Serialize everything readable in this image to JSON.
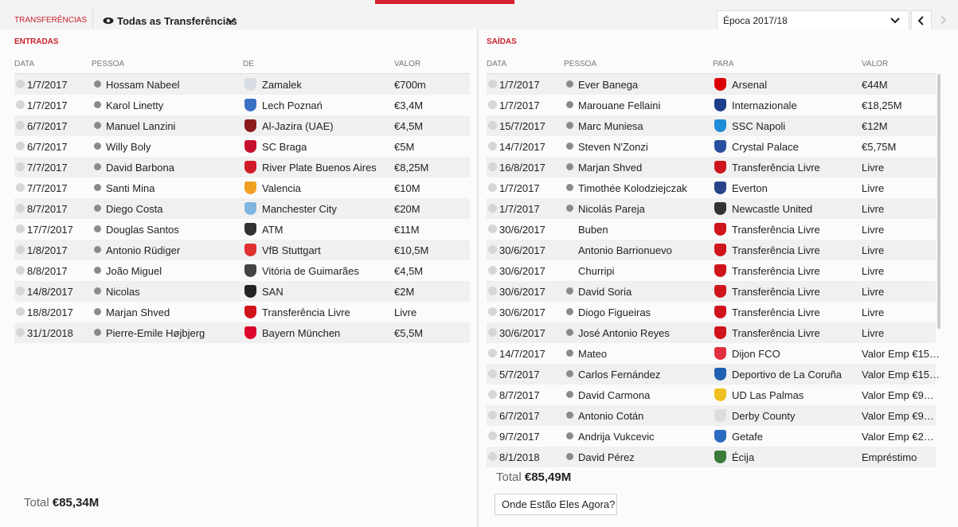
{
  "header": {
    "tab": "TRANSFERÊNCIAS",
    "filter": "Todas as Transferências",
    "season": "Época 2017/18"
  },
  "incoming": {
    "title": "ENTRADAS",
    "columns": [
      "DATA",
      "PESSOA",
      "DE",
      "VALOR"
    ],
    "rows": [
      {
        "date": "1/7/2017",
        "person": "Hossam Nabeel",
        "club": "Zamalek",
        "value": "€700m",
        "info_icon": true,
        "crest": "#d8dde3"
      },
      {
        "date": "1/7/2017",
        "person": "Karol Linetty",
        "club": "Lech Poznań",
        "value": "€3,4M",
        "info_icon": true,
        "crest": "#3a6fc4"
      },
      {
        "date": "6/7/2017",
        "person": "Manuel Lanzini",
        "club": "Al-Jazira (UAE)",
        "value": "€4,5M",
        "info_icon": true,
        "crest": "#8a1a1a"
      },
      {
        "date": "6/7/2017",
        "person": "Willy Boly",
        "club": "SC Braga",
        "value": "€5M",
        "info_icon": true,
        "crest": "#c8102e"
      },
      {
        "date": "7/7/2017",
        "person": "David Barbona",
        "club": "River Plate Buenos Aires",
        "value": "€8,25M",
        "info_icon": true,
        "crest": "#d01c2a"
      },
      {
        "date": "7/7/2017",
        "person": "Santi Mina",
        "club": "Valencia",
        "value": "€10M",
        "info_icon": true,
        "crest": "#f0a020"
      },
      {
        "date": "8/7/2017",
        "person": "Diego Costa",
        "club": "Manchester City",
        "value": "€20M",
        "info_icon": true,
        "crest": "#7fb6e0"
      },
      {
        "date": "17/7/2017",
        "person": "Douglas Santos",
        "club": "ATM",
        "value": "€11M",
        "info_icon": true,
        "crest": "#333333"
      },
      {
        "date": "1/8/2017",
        "person": "Antonio Rüdiger",
        "club": "VfB Stuttgart",
        "value": "€10,5M",
        "info_icon": true,
        "crest": "#e03030"
      },
      {
        "date": "8/8/2017",
        "person": "João Miguel",
        "club": "Vitória de Guimarães",
        "value": "€4,5M",
        "info_icon": true,
        "crest": "#444444"
      },
      {
        "date": "14/8/2017",
        "person": "Nicolas",
        "club": "SAN",
        "value": "€2M",
        "info_icon": true,
        "crest": "#222222"
      },
      {
        "date": "18/8/2017",
        "person": "Marjan Shved",
        "club": "Transferência Livre",
        "value": "Livre",
        "info_icon": true,
        "crest": "#d0141c"
      },
      {
        "date": "31/1/2018",
        "person": "Pierre-Emile Højbjerg",
        "club": "Bayern München",
        "value": "€5,5M",
        "info_icon": true,
        "crest": "#dc052d"
      }
    ],
    "total_label": "Total",
    "total": "€85,34M"
  },
  "outgoing": {
    "title": "SAÍDAS",
    "columns": [
      "DATA",
      "PESSOA",
      "PARA",
      "VALOR"
    ],
    "rows": [
      {
        "date": "1/7/2017",
        "person": "Ever Banega",
        "club": "Arsenal",
        "value": "€44M",
        "info_icon": true,
        "crest": "#db0007"
      },
      {
        "date": "1/7/2017",
        "person": "Marouane Fellaini",
        "club": "Internazionale",
        "value": "€18,25M",
        "info_icon": true,
        "crest": "#1e3e8c"
      },
      {
        "date": "15/7/2017",
        "person": "Marc Muniesa",
        "club": "SSC Napoli",
        "value": "€12M",
        "info_icon": true,
        "crest": "#1f8ad6"
      },
      {
        "date": "14/7/2017",
        "person": "Steven N'Zonzi",
        "club": "Crystal Palace",
        "value": "€5,75M",
        "info_icon": true,
        "crest": "#2a4fa0"
      },
      {
        "date": "16/8/2017",
        "person": "Marjan Shved",
        "club": "Transferência Livre",
        "value": "Livre",
        "info_icon": true,
        "crest": "#d0141c"
      },
      {
        "date": "1/7/2017",
        "person": "Timothée Kolodziejczak",
        "club": "Everton",
        "value": "Livre",
        "info_icon": true,
        "crest": "#274488"
      },
      {
        "date": "1/7/2017",
        "person": "Nicolás Pareja",
        "club": "Newcastle United",
        "value": "Livre",
        "info_icon": true,
        "crest": "#333333"
      },
      {
        "date": "30/6/2017",
        "person": "Buben",
        "club": "Transferência Livre",
        "value": "Livre",
        "info_icon": false,
        "crest": "#d0141c"
      },
      {
        "date": "30/6/2017",
        "person": "Antonio Barrionuevo",
        "club": "Transferência Livre",
        "value": "Livre",
        "info_icon": false,
        "crest": "#d0141c"
      },
      {
        "date": "30/6/2017",
        "person": "Churripi",
        "club": "Transferência Livre",
        "value": "Livre",
        "info_icon": false,
        "crest": "#d0141c"
      },
      {
        "date": "30/6/2017",
        "person": "David Soria",
        "club": "Transferência Livre",
        "value": "Livre",
        "info_icon": true,
        "crest": "#d0141c"
      },
      {
        "date": "30/6/2017",
        "person": "Diogo Figueiras",
        "club": "Transferência Livre",
        "value": "Livre",
        "info_icon": true,
        "crest": "#d0141c"
      },
      {
        "date": "30/6/2017",
        "person": "José Antonio Reyes",
        "club": "Transferência Livre",
        "value": "Livre",
        "info_icon": true,
        "crest": "#d0141c"
      },
      {
        "date": "14/7/2017",
        "person": "Mateo",
        "club": "Dijon FCO",
        "value": "Valor Emp €15…",
        "info_icon": true,
        "crest": "#e03040"
      },
      {
        "date": "5/7/2017",
        "person": "Carlos Fernández",
        "club": "Deportivo de La Coruña",
        "value": "Valor Emp €15…",
        "info_icon": true,
        "crest": "#2060b0"
      },
      {
        "date": "8/7/2017",
        "person": "David Carmona",
        "club": "UD Las Palmas",
        "value": "Valor Emp €9…",
        "info_icon": true,
        "crest": "#f0c020"
      },
      {
        "date": "6/7/2017",
        "person": "Antonio Cotán",
        "club": "Derby County",
        "value": "Valor Emp €9…",
        "info_icon": true,
        "crest": "#dddddd"
      },
      {
        "date": "9/7/2017",
        "person": "Andrija Vukcevic",
        "club": "Getafe",
        "value": "Valor Emp €2…",
        "info_icon": true,
        "crest": "#2a6ac0"
      },
      {
        "date": "8/1/2018",
        "person": "David Pérez",
        "club": "Écija",
        "value": "Empréstimo",
        "info_icon": true,
        "crest": "#3a7a3a"
      }
    ],
    "total_label": "Total",
    "total": "€85,49M",
    "button": "Onde Estão Eles Agora?"
  }
}
